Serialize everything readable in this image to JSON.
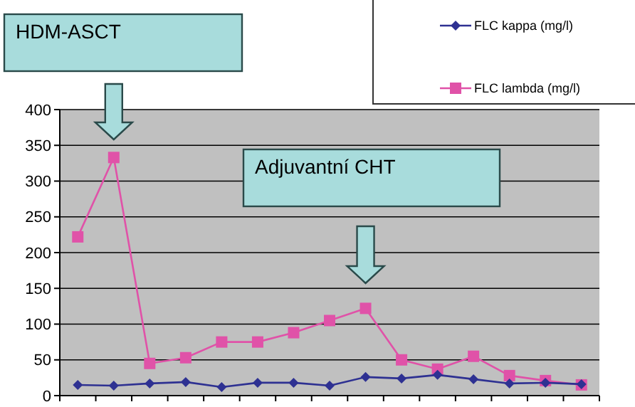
{
  "chart_data": {
    "type": "line",
    "categories": [
      null,
      null,
      null,
      null,
      null,
      null,
      null,
      null,
      null,
      null,
      null,
      null,
      null,
      null,
      null
    ],
    "series": [
      {
        "name": "FLC kappa (mg/l)",
        "color": "#2e3192",
        "marker": "diamond",
        "values": [
          15,
          14,
          17,
          19,
          12,
          18,
          18,
          14,
          26,
          24,
          29,
          23,
          17,
          18,
          16
        ]
      },
      {
        "name": "FLC lambda (mg/l)",
        "color": "#e052a8",
        "marker": "square",
        "values": [
          222,
          333,
          45,
          53,
          75,
          75,
          88,
          105,
          122,
          50,
          37,
          55,
          28,
          21,
          15
        ]
      }
    ],
    "ylim": [
      0,
      400
    ],
    "yticks": [
      0,
      50,
      100,
      150,
      200,
      250,
      300,
      350,
      400
    ],
    "grid": "y",
    "legend": "top right",
    "annotations": [
      "HDM-ASCT",
      "Adjuvantní CHT"
    ]
  }
}
